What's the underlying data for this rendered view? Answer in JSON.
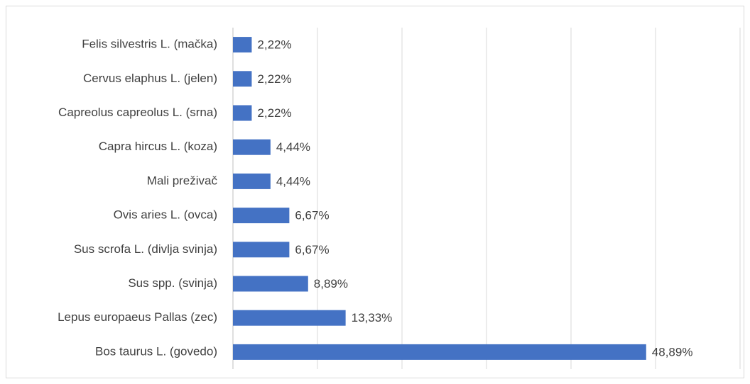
{
  "chart_data": {
    "type": "hbar",
    "categories": [
      "Felis silvestris L. (mačka)",
      "Cervus elaphus L. (jelen)",
      "Capreolus capreolus L. (srna)",
      "Capra hircus L. (koza)",
      "Mali preživač",
      "Ovis aries L. (ovca)",
      "Sus scrofa L. (divlja svinja)",
      "Sus spp. (svinja)",
      "Lepus europaeus Pallas (zec)",
      "Bos taurus L. (govedo)"
    ],
    "values": [
      2.22,
      2.22,
      2.22,
      4.44,
      4.44,
      6.67,
      6.67,
      8.89,
      13.33,
      48.89
    ],
    "value_labels": [
      "2,22%",
      "2,22%",
      "2,22%",
      "4,44%",
      "4,44%",
      "6,67%",
      "6,67%",
      "8,89%",
      "13,33%",
      "48,89%"
    ],
    "color": "#4472c4",
    "xlim": [
      0,
      60
    ],
    "xticks": [
      0,
      10,
      20,
      30,
      40,
      50,
      60
    ],
    "grid": true
  }
}
